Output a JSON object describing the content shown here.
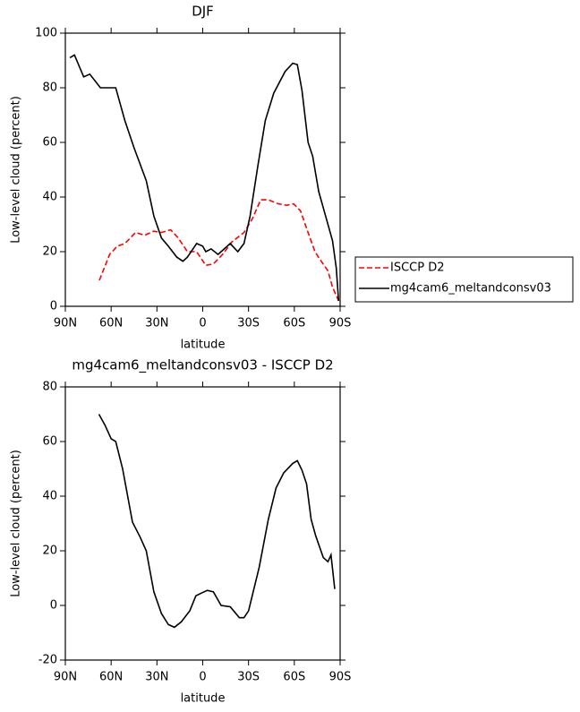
{
  "chart_data": [
    {
      "type": "line",
      "title": "DJF",
      "x_label": "latitude",
      "y_label": "Low-level cloud (percent)",
      "xlim": [
        90,
        -90
      ],
      "xticks": [
        {
          "value": 90,
          "label": "90N"
        },
        {
          "value": 60,
          "label": "60N"
        },
        {
          "value": 30,
          "label": "30N"
        },
        0,
        {
          "value": -30,
          "label": "30S"
        },
        {
          "value": -60,
          "label": "60S"
        },
        {
          "value": -90,
          "label": "90S"
        }
      ],
      "ylim": [
        0,
        100
      ],
      "yticks": [
        0,
        20,
        40,
        60,
        80,
        100
      ],
      "legend": "right",
      "series": [
        {
          "name": "ISCCP D2",
          "color": "#ff0000",
          "style": "dashed",
          "x": [
            67.7,
            61,
            56,
            51,
            44,
            38,
            32,
            27,
            21,
            16,
            10,
            4,
            -2,
            -7,
            -13,
            -19,
            -27,
            -32.5,
            -38,
            -43,
            -49.5,
            -55,
            -59.5,
            -64,
            -69,
            -73.5,
            -77,
            -82,
            -85,
            -89
          ],
          "values": [
            9.5,
            19,
            22,
            23,
            27,
            26,
            27.5,
            27,
            28,
            25,
            20,
            20,
            15,
            15.5,
            19,
            23.5,
            27,
            32,
            39,
            39,
            37.5,
            37,
            37.5,
            35,
            27,
            20,
            17,
            13,
            7,
            2
          ]
        },
        {
          "name": "mg4cam6_meltandconsv03",
          "color": "#000000",
          "style": "solid",
          "x": [
            87,
            84,
            78,
            74,
            67,
            62.5,
            57,
            51,
            45,
            37,
            32,
            27,
            22.5,
            17,
            13,
            10,
            4,
            0,
            -2,
            -5.5,
            -10,
            -18,
            -23,
            -27,
            -31,
            -36,
            -41,
            -46.5,
            -54,
            -59,
            -62,
            -65,
            -69,
            -72,
            -76,
            -80.5,
            -85,
            -87.5,
            -89
          ],
          "values": [
            91,
            92,
            84,
            85,
            80,
            80,
            80,
            68,
            58,
            46,
            33,
            25,
            22,
            18,
            16.5,
            18,
            23,
            22,
            20,
            21,
            19,
            23,
            20,
            23,
            33,
            51,
            68,
            78,
            86,
            89,
            88.5,
            79,
            60,
            55,
            42,
            33,
            24,
            14,
            2
          ]
        }
      ]
    },
    {
      "type": "line",
      "title": "mg4cam6_meltandconsv03 - ISCCP D2",
      "x_label": "latitude",
      "y_label": "Low-level cloud (percent)",
      "xlim": [
        90,
        -90
      ],
      "xticks": [
        {
          "value": 90,
          "label": "90N"
        },
        {
          "value": 60,
          "label": "60N"
        },
        {
          "value": 30,
          "label": "30N"
        },
        0,
        {
          "value": -30,
          "label": "30S"
        },
        {
          "value": -60,
          "label": "60S"
        },
        {
          "value": -90,
          "label": "90S"
        }
      ],
      "ylim": [
        -20,
        80
      ],
      "yticks": [
        -20,
        0,
        20,
        40,
        60,
        80
      ],
      "series": [
        {
          "color": "#000000",
          "style": "solid",
          "x": [
            68,
            64,
            60,
            57,
            52.5,
            46,
            41,
            37,
            32,
            27,
            22.5,
            18.5,
            14,
            8.5,
            4.5,
            1,
            -3,
            -7,
            -12,
            -18,
            -24,
            -27,
            -30,
            -37,
            -43,
            -48,
            -53,
            -59,
            -62,
            -65,
            -68,
            -71,
            -74,
            -79,
            -82,
            -84,
            -86.5
          ],
          "values": [
            70,
            66,
            61,
            60,
            50,
            30.5,
            25,
            20,
            5,
            -3,
            -7,
            -8,
            -6,
            -2,
            3.5,
            4.5,
            5.5,
            5,
            0,
            -0.5,
            -4.5,
            -4.5,
            -2,
            14,
            31.5,
            43,
            48.5,
            52,
            53,
            49.5,
            44.5,
            31.5,
            25.5,
            17.5,
            16,
            18.5,
            6
          ]
        }
      ]
    }
  ]
}
